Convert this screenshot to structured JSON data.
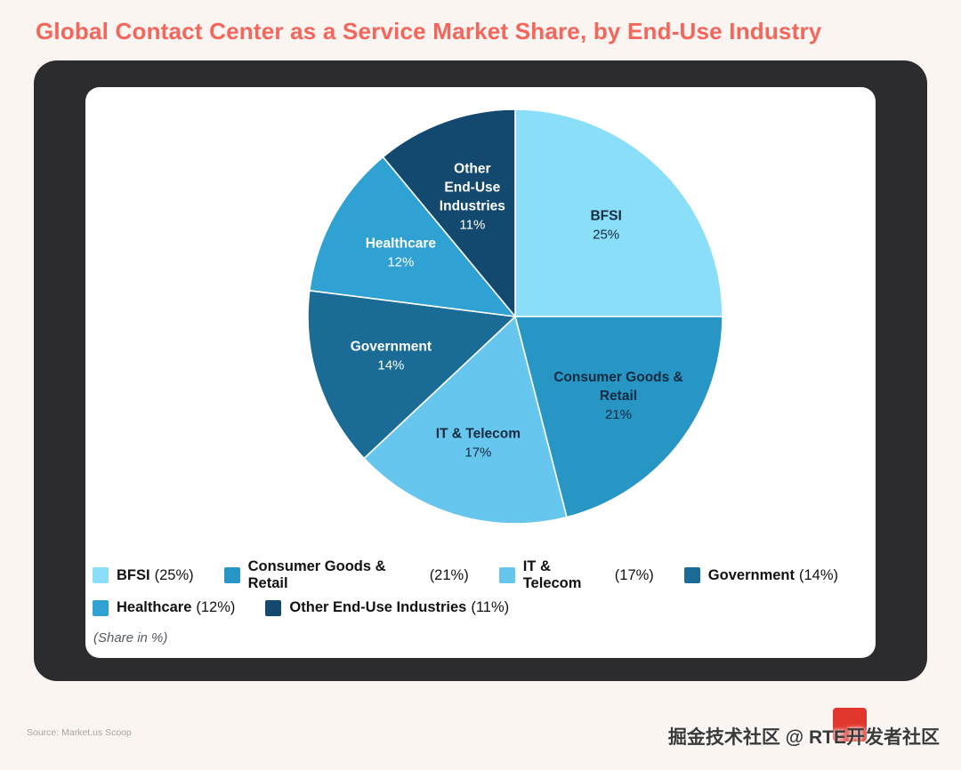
{
  "header": {
    "title": "Global Contact Center as a Service Market Share, by End-Use Industry"
  },
  "footer": {
    "source": "Source: Market.us Scoop",
    "watermark": "掘金技术社区 @ RTE开发者社区"
  },
  "chart_data": {
    "type": "pie",
    "title": "Global Contact Center as a Service Market Share, by End-Use Industry",
    "unit_note": "(Share in %)",
    "start_angle_deg": 0,
    "direction": "clockwise",
    "legend_position": "bottom-left",
    "legend_rows": [
      [
        0,
        1,
        2,
        3
      ],
      [
        4,
        5
      ]
    ],
    "slices": [
      {
        "id": "bfsi",
        "label": "BFSI",
        "value": 25,
        "pct_label": "25%",
        "legend_pct": "(25%)",
        "color": "#8ADEF8",
        "text_color": "#122b40",
        "name_lines": [
          "BFSI"
        ],
        "label_r": 0.62
      },
      {
        "id": "consumer-goods-retail",
        "label": "Consumer Goods & Retail",
        "value": 21,
        "pct_label": "21%",
        "legend_pct": "(21%)",
        "color": "#2796C5",
        "text_color": "#122b40",
        "name_lines": [
          "Consumer Goods &",
          "Retail"
        ],
        "label_r": 0.63
      },
      {
        "id": "it-telecom",
        "label": "IT & Telecom",
        "value": 17,
        "pct_label": "17%",
        "legend_pct": "(17%)",
        "color": "#67C6EE",
        "text_color": "#122b40",
        "name_lines": [
          "IT & Telecom"
        ],
        "label_r": 0.64
      },
      {
        "id": "government",
        "label": "Government",
        "value": 14,
        "pct_label": "14%",
        "legend_pct": "(14%)",
        "color": "#1A6C96",
        "text_color": "#ffffff",
        "name_lines": [
          "Government"
        ],
        "label_r": 0.63
      },
      {
        "id": "healthcare",
        "label": "Healthcare",
        "value": 12,
        "pct_label": "12%",
        "legend_pct": "(12%)",
        "color": "#2FA1D3",
        "text_color": "#ffffff",
        "name_lines": [
          "Healthcare"
        ],
        "label_r": 0.63
      },
      {
        "id": "other-end-use-industries",
        "label": "Other End-Use Industries",
        "value": 11,
        "pct_label": "11%",
        "legend_pct": "(11%)",
        "color": "#13496F",
        "text_color": "#ffffff",
        "name_lines": [
          "Other",
          "End-Use",
          "Industries"
        ],
        "label_r": 0.61
      }
    ]
  }
}
